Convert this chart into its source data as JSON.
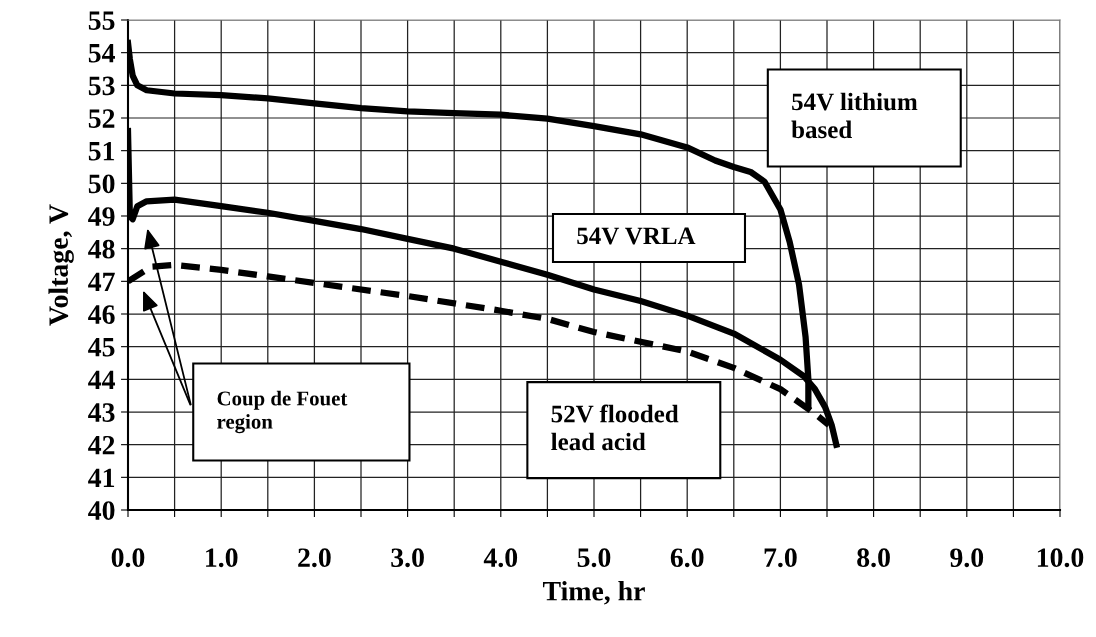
{
  "chart_data": {
    "type": "line",
    "xlabel": "Time, hr",
    "ylabel": "Voltage, V",
    "xlim": [
      0,
      10
    ],
    "ylim": [
      40,
      55
    ],
    "xticks": [
      {
        "value": 0,
        "label": "0.0"
      },
      {
        "value": 0.5,
        "label": null
      },
      {
        "value": 1,
        "label": "1.0"
      },
      {
        "value": 1.5,
        "label": null
      },
      {
        "value": 2,
        "label": "2.0"
      },
      {
        "value": 2.5,
        "label": null
      },
      {
        "value": 3,
        "label": "3.0"
      },
      {
        "value": 3.5,
        "label": null
      },
      {
        "value": 4,
        "label": "4.0"
      },
      {
        "value": 4.5,
        "label": null
      },
      {
        "value": 5,
        "label": "5.0"
      },
      {
        "value": 5.5,
        "label": null
      },
      {
        "value": 6,
        "label": "6.0"
      },
      {
        "value": 6.5,
        "label": null
      },
      {
        "value": 7,
        "label": "7.0"
      },
      {
        "value": 7.5,
        "label": null
      },
      {
        "value": 8,
        "label": "8.0"
      },
      {
        "value": 8.5,
        "label": null
      },
      {
        "value": 9,
        "label": "9.0"
      },
      {
        "value": 9.5,
        "label": null
      },
      {
        "value": 10,
        "label": "10.0"
      }
    ],
    "yticks": [
      40,
      41,
      42,
      43,
      44,
      45,
      46,
      47,
      48,
      49,
      50,
      51,
      52,
      53,
      54,
      55
    ],
    "grid": true,
    "marker": "none",
    "series": [
      {
        "name": "54V lithium based",
        "color": "#000000",
        "line_style": "solid",
        "x": [
          0,
          0.02,
          0.05,
          0.1,
          0.2,
          0.5,
          1.0,
          1.5,
          2.0,
          2.5,
          3.0,
          3.5,
          4.0,
          4.5,
          5.0,
          5.5,
          6.0,
          6.3,
          6.5,
          6.68,
          6.83,
          7.0,
          7.1,
          7.2,
          7.27,
          7.3,
          7.3
        ],
        "values": [
          54.3,
          53.8,
          53.3,
          53.0,
          52.85,
          52.75,
          52.7,
          52.6,
          52.45,
          52.3,
          52.2,
          52.15,
          52.1,
          51.98,
          51.75,
          51.5,
          51.1,
          50.7,
          50.5,
          50.35,
          50.05,
          49.2,
          48.2,
          46.9,
          45.3,
          44.0,
          43.2
        ]
      },
      {
        "name": "54V VRLA",
        "color": "#000000",
        "line_style": "solid",
        "x": [
          0,
          0.02,
          0.05,
          0.1,
          0.2,
          0.5,
          1.0,
          1.5,
          2.0,
          2.5,
          3.0,
          3.5,
          4.0,
          4.5,
          5.0,
          5.5,
          6.0,
          6.5,
          7.0,
          7.25,
          7.37,
          7.48,
          7.55,
          7.6
        ],
        "values": [
          51.6,
          49.0,
          48.9,
          49.3,
          49.45,
          49.5,
          49.3,
          49.1,
          48.85,
          48.6,
          48.3,
          48.0,
          47.6,
          47.2,
          46.75,
          46.4,
          45.95,
          45.4,
          44.6,
          44.1,
          43.7,
          43.15,
          42.6,
          42.0
        ]
      },
      {
        "name": "52V flooded lead acid",
        "color": "#000000",
        "line_style": "dashed",
        "x": [
          0,
          0.25,
          0.5,
          1.0,
          1.5,
          2.0,
          3.0,
          4.0,
          4.5,
          5.0,
          6.0,
          6.5,
          7.0,
          7.37,
          7.52
        ],
        "values": [
          47.0,
          47.45,
          47.5,
          47.35,
          47.15,
          46.95,
          46.55,
          46.1,
          45.85,
          45.45,
          44.85,
          44.35,
          43.7,
          42.95,
          42.6
        ]
      }
    ],
    "annotations": [
      "Coup de Fouet region"
    ]
  }
}
